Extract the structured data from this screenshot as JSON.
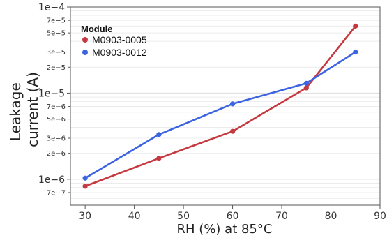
{
  "chart_data": {
    "type": "line",
    "xlabel": "RH (%) at 85°C",
    "ylabel_lines": [
      "Leakage",
      "current (A)"
    ],
    "xlim": [
      27,
      90
    ],
    "ylim": [
      5e-07,
      0.0001
    ],
    "yscale": "log",
    "x_ticks": [
      30,
      40,
      50,
      60,
      70,
      80,
      90
    ],
    "x_tick_labels": [
      "30",
      "40",
      "50",
      "60",
      "70",
      "80",
      "90"
    ],
    "y_major_ticks": [
      1e-06,
      1e-05,
      0.0001
    ],
    "y_major_labels": [
      "1e−6",
      "1e−5",
      "1e−4"
    ],
    "y_minor_ticks": [
      7e-07,
      2e-06,
      3e-06,
      5e-06,
      7e-06,
      2e-05,
      3e-05,
      5e-05,
      7e-05
    ],
    "y_minor_labels": [
      "7e−7",
      "2e−6",
      "3e−6",
      "5e−6",
      "7e−6",
      "2e−5",
      "3e−5",
      "5e−5",
      "7e−5"
    ],
    "legend": {
      "title": "Module",
      "placement": "top-left"
    },
    "grid": "horizontal",
    "series": [
      {
        "name": "M0903-0005",
        "color": "#c5383f",
        "x": [
          30,
          45,
          60,
          75,
          85
        ],
        "y": [
          8.3e-07,
          1.75e-06,
          3.6e-06,
          1.15e-05,
          6e-05
        ]
      },
      {
        "name": "M0903-0012",
        "color": "#3c63e0",
        "x": [
          30,
          45,
          60,
          75,
          85
        ],
        "y": [
          1.03e-06,
          3.3e-06,
          7.5e-06,
          1.3e-05,
          3e-05
        ]
      }
    ]
  }
}
